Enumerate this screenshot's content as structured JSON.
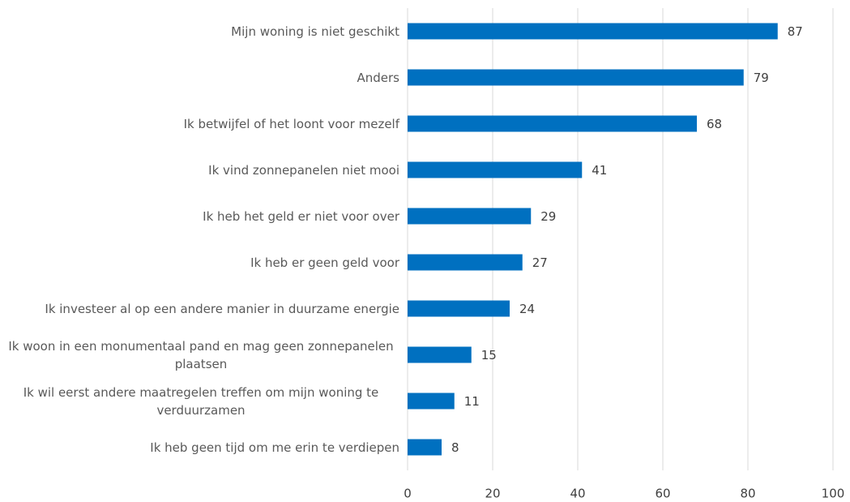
{
  "chart_data": {
    "type": "bar",
    "orientation": "horizontal",
    "categories": [
      "Mijn woning is niet geschikt",
      "Anders",
      "Ik betwijfel of het loont voor mezelf",
      "Ik vind zonnepanelen niet mooi",
      "Ik heb het geld er niet voor over",
      "Ik heb er geen geld voor",
      "Ik investeer al op een andere manier in duurzame energie",
      "Ik woon in een monumentaal pand en mag geen zonnepanelen plaatsen",
      "Ik wil eerst andere maatregelen treffen om mijn woning te verduurzamen",
      "Ik heb geen tijd om me erin te verdiepen"
    ],
    "values": [
      87,
      79,
      68,
      41,
      29,
      27,
      24,
      15,
      11,
      8
    ],
    "color": "#0070c0",
    "xlim": [
      0,
      100
    ],
    "xticks": [
      0,
      20,
      40,
      60,
      80,
      100
    ],
    "grid": true
  }
}
